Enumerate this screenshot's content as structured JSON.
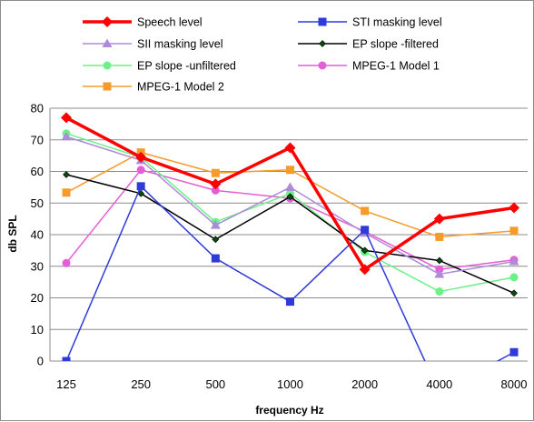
{
  "chart_data": {
    "type": "line",
    "title": "",
    "xlabel": "frequency Hz",
    "ylabel": "db SPL",
    "ylim": [
      0,
      80
    ],
    "ytick_step": 10,
    "grid": "horizontal",
    "legend_position": "top",
    "categories": [
      "125",
      "250",
      "500",
      "1000",
      "2000",
      "4000",
      "8000"
    ],
    "series": [
      {
        "name": "Speech level",
        "color": "#ff0000",
        "marker": "diamond",
        "width": 3.5,
        "values": [
          77,
          64.5,
          56,
          67.5,
          29,
          45,
          48.5
        ]
      },
      {
        "name": "STI  masking level",
        "color": "#2f3bd9",
        "marker": "square",
        "width": 1.5,
        "values": [
          0,
          55.3,
          32.5,
          18.8,
          41.5,
          -10,
          2.8
        ]
      },
      {
        "name": "SII masking level",
        "color": "#ad8bd8",
        "marker": "triangle",
        "width": 1.5,
        "values": [
          71,
          63.5,
          43,
          55,
          40.5,
          27.5,
          31.5
        ]
      },
      {
        "name": "EP slope -filtered",
        "color": "#000000",
        "marker": "diamond-small",
        "width": 1.5,
        "values": [
          59,
          53,
          38.5,
          52,
          35,
          31.8,
          21.5
        ]
      },
      {
        "name": "EP slope -unfiltered",
        "color": "#6cf089",
        "marker": "circle",
        "width": 1.5,
        "values": [
          72,
          64.5,
          44,
          53,
          34.5,
          22,
          26.5
        ]
      },
      {
        "name": "MPEG-1  Model 1",
        "color": "#e45fd6",
        "marker": "circle",
        "width": 1.5,
        "values": [
          31,
          60.5,
          54,
          51.5,
          41,
          29,
          32
        ]
      },
      {
        "name": "MPEG-1  Model 2",
        "color": "#f59b2b",
        "marker": "square",
        "width": 1.5,
        "values": [
          53.3,
          66,
          59.5,
          60.5,
          47.5,
          39.3,
          41.2
        ]
      }
    ]
  }
}
